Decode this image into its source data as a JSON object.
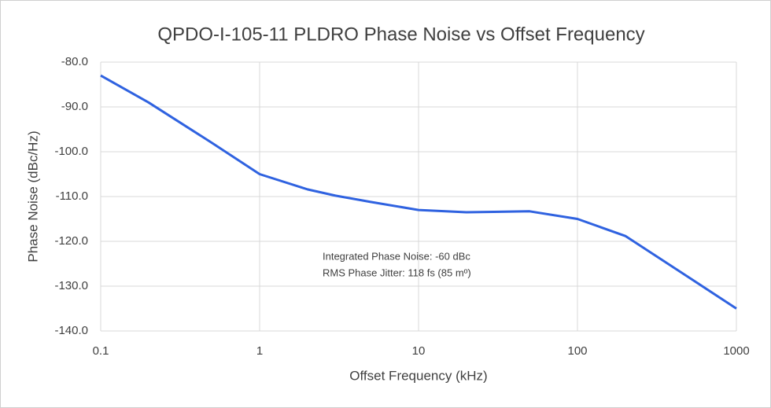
{
  "chart_data": {
    "type": "line",
    "title": "QPDO-I-105-11 PLDRO Phase Noise vs Offset Frequency",
    "x_label": "Offset Frequency (kHz)",
    "y_label": "Phase Noise (dBc/Hz)",
    "annotations": [
      "Integrated Phase Noise: -60 dBc",
      "RMS Phase Jitter: 118 fs (85 mº)"
    ],
    "x_scale": "log",
    "xlim": [
      0.1,
      1000
    ],
    "xticks": [
      0.1,
      1,
      10,
      100,
      1000
    ],
    "ylim": [
      -140,
      -80
    ],
    "yticks": [
      {
        "value": -80,
        "label": "-80.0"
      },
      {
        "value": -90,
        "label": "-90.0"
      },
      {
        "value": -100,
        "label": "-100.0"
      },
      {
        "value": -110,
        "label": "-110.0"
      },
      {
        "value": -120,
        "label": "-120.0"
      },
      {
        "value": -130,
        "label": "-130.0"
      },
      {
        "value": -140,
        "label": "-140.0"
      }
    ],
    "grid": true,
    "series": [
      {
        "color": "#2f62e0",
        "x": [
          0.1,
          0.2,
          0.5,
          1,
          2,
          3,
          5,
          10,
          20,
          50,
          100,
          200,
          500,
          1000
        ],
        "values": [
          -83,
          -89,
          -98,
          -105,
          -108.4,
          -109.8,
          -111.2,
          -113,
          -113.5,
          -113.3,
          -115,
          -118.8,
          -128,
          -135
        ]
      }
    ]
  }
}
